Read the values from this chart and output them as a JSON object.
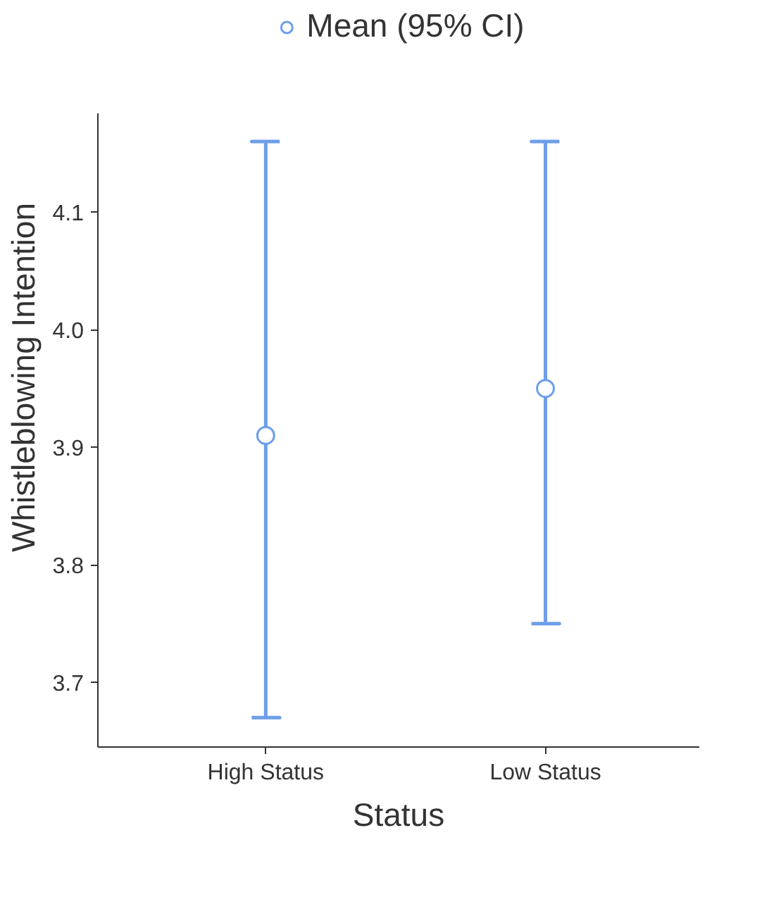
{
  "chart_data": {
    "type": "scatter",
    "xlabel": "Status",
    "ylabel": "Whistleblowing Intention",
    "categories": [
      "High Status",
      "Low Status"
    ],
    "series": [
      {
        "name": "Mean (95% CI)",
        "color": "#6d9eeb",
        "values": [
          3.91,
          3.95
        ],
        "errors": [
          [
            3.67,
            4.16
          ],
          [
            3.75,
            4.16
          ]
        ]
      }
    ],
    "ylim": [
      3.645,
      4.184
    ],
    "yticks": [
      3.7,
      3.8,
      3.9,
      {
        "value": 4.0,
        "label": "4.0"
      },
      4.1
    ],
    "marker": "circle",
    "legend": "top"
  }
}
